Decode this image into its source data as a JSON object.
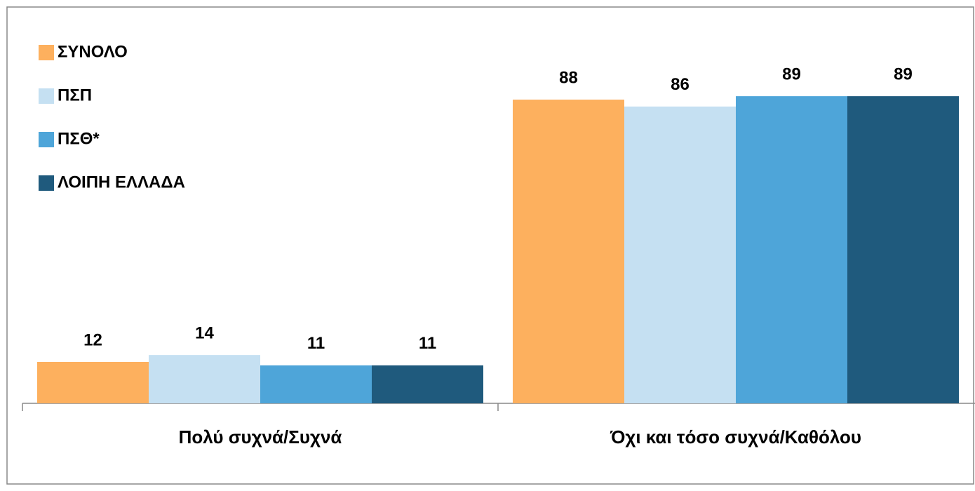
{
  "chart_data": {
    "type": "bar",
    "categories": [
      "Πολύ συχνά/Συχνά",
      "Όχι και τόσο συχνά/Καθόλου"
    ],
    "series": [
      {
        "name": "ΣΥΝΟΛΟ",
        "color": "#FDB05E",
        "values": [
          12,
          88
        ]
      },
      {
        "name": "ΠΣΠ",
        "color": "#C5E0F2",
        "values": [
          14,
          86
        ]
      },
      {
        "name": "ΠΣΘ*",
        "color": "#4EA5D9",
        "values": [
          11,
          89
        ]
      },
      {
        "name": "ΛΟΙΠΗ ΕΛΛΑΔΑ",
        "color": "#1F5A7D",
        "values": [
          11,
          89
        ]
      }
    ],
    "ylim": [
      0,
      100
    ],
    "legend": "top-left"
  }
}
